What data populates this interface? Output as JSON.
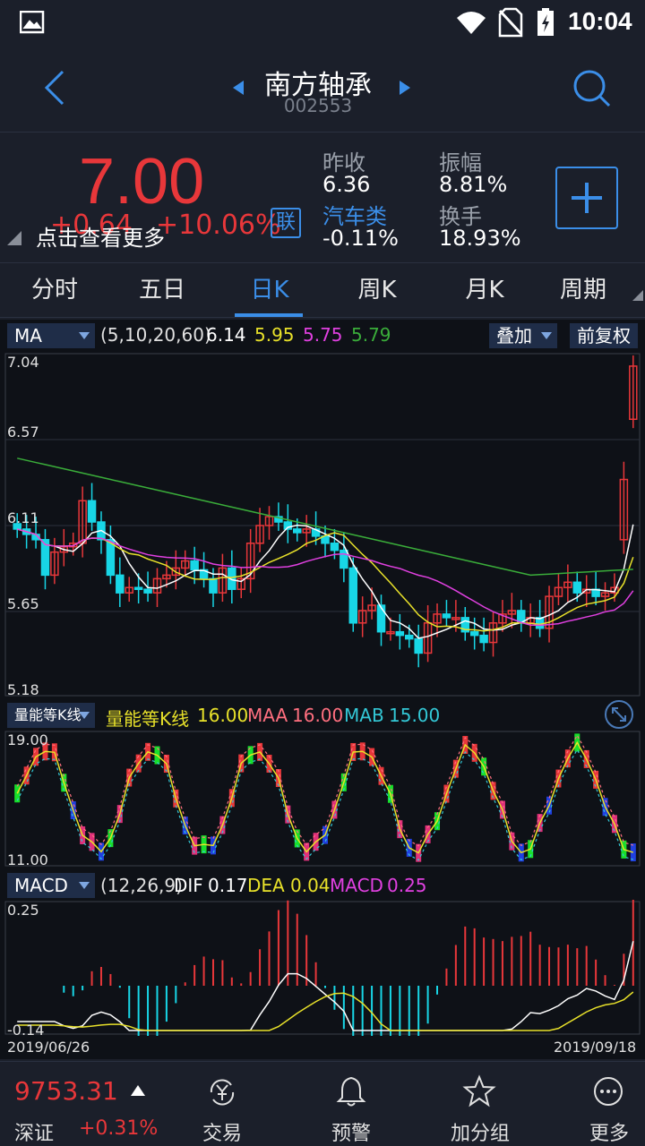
{
  "status_bar": {
    "time": "10:04"
  },
  "header": {
    "stock_name": "南方轴承",
    "stock_code": "002553"
  },
  "quote": {
    "price": "7.00",
    "change": "+0.64",
    "change_pct": "+10.06%",
    "tap_hint": "点击查看更多",
    "link_badge": "联",
    "prev_close_label": "昨收",
    "prev_close": "6.36",
    "sector_label": "汽车类",
    "sector_change": "-0.11%",
    "amplitude_label": "振幅",
    "amplitude": "8.81%",
    "turnover_label": "换手",
    "turnover": "18.93%",
    "colors": {
      "up": "#e8373a",
      "down": "#18d6e6",
      "accent": "#3b8ee8"
    }
  },
  "tabs": [
    {
      "label": "分时",
      "active": false
    },
    {
      "label": "五日",
      "active": false
    },
    {
      "label": "日K",
      "active": true
    },
    {
      "label": "周K",
      "active": false
    },
    {
      "label": "月K",
      "active": false
    },
    {
      "label": "周期",
      "active": false
    }
  ],
  "ma_bar": {
    "indicator": "MA",
    "params": "(5,10,20,60)",
    "ma5": "6.14",
    "ma10": "5.95",
    "ma20": "5.75",
    "ma60": "5.79",
    "overlay_button": "叠加",
    "adjust_button": "前复权",
    "colors": {
      "ma5": "#ffffff",
      "ma10": "#e8e12a",
      "ma20": "#e040e0",
      "ma60": "#3aad3a"
    }
  },
  "price_axis": [
    "7.04",
    "6.57",
    "6.11",
    "5.65",
    "5.18"
  ],
  "volume_bar": {
    "indicator": "量能等K线",
    "title": "量能等K线",
    "value": "16.00",
    "maa_label": "MAA",
    "maa": "16.00",
    "mab_label": "MAB",
    "mab": "15.00",
    "axis": [
      "19.00",
      "11.00"
    ]
  },
  "macd_bar": {
    "indicator": "MACD",
    "params": "(12,26,9)",
    "dif_label": "DIF",
    "dif": "0.17",
    "dea_label": "DEA",
    "dea": "0.04",
    "macd_label": "MACD",
    "macd": "0.25",
    "axis": [
      "0.25",
      "-0.14"
    ]
  },
  "date_range": {
    "start": "2019/06/26",
    "end": "2019/09/18"
  },
  "bottom": {
    "index_value": "9753.31",
    "index_name": "深证",
    "index_change": "+0.31%",
    "nav": [
      {
        "label": "交易",
        "icon": "yen-cycle-icon"
      },
      {
        "label": "预警",
        "icon": "bell-icon"
      },
      {
        "label": "加分组",
        "icon": "star-icon"
      },
      {
        "label": "更多",
        "icon": "more-icon"
      }
    ]
  },
  "chart_data": {
    "type": "candlestick",
    "x_start": "2019/06/26",
    "x_end": "2019/09/18",
    "ylim": [
      5.18,
      7.04
    ],
    "close": [
      6.08,
      6.05,
      6.02,
      5.82,
      5.95,
      5.98,
      6.0,
      6.24,
      6.12,
      6.02,
      5.82,
      5.72,
      5.75,
      5.74,
      5.72,
      5.8,
      5.82,
      5.86,
      5.9,
      5.85,
      5.8,
      5.72,
      5.86,
      5.74,
      5.8,
      6.0,
      6.1,
      6.15,
      6.12,
      6.08,
      6.06,
      6.08,
      6.04,
      6.0,
      5.96,
      5.86,
      5.55,
      5.62,
      5.65,
      5.5,
      5.5,
      5.48,
      5.46,
      5.38,
      5.55,
      5.6,
      5.58,
      5.58,
      5.5,
      5.48,
      5.44,
      5.55,
      5.6,
      5.62,
      5.55,
      5.58,
      5.52,
      5.7,
      5.75,
      5.78,
      5.72,
      5.74,
      5.7,
      5.72,
      5.75,
      6.36,
      7.0
    ],
    "ma5_last": 6.14,
    "ma10_last": 5.95,
    "ma20_last": 5.75,
    "ma60_last": 5.79,
    "macd_last": {
      "dif": 0.17,
      "dea": 0.04,
      "macd": 0.25
    }
  }
}
